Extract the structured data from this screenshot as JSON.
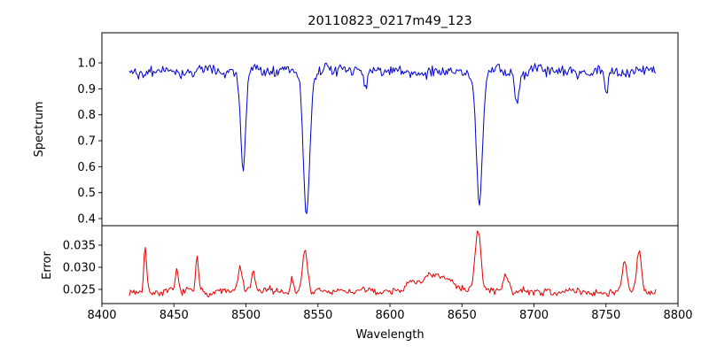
{
  "figure": {
    "title": "20110823_0217m49_123",
    "xlabel": "Wavelength",
    "background_color": "#ffffff"
  },
  "chart_data": [
    {
      "type": "line",
      "title": "20110823_0217m49_123",
      "ylabel": "Spectrum",
      "series_name": "spectrum",
      "color": "#0000cd",
      "xlim": [
        8400,
        8800
      ],
      "ylim": [
        0.3727,
        1.1161
      ],
      "yticks": [
        0.4,
        0.5,
        0.6,
        0.7,
        0.8,
        0.9,
        1.0
      ],
      "ytick_decimals": 1,
      "grid": false,
      "x_start": 8419,
      "x_end": 8785,
      "x_step": 0.8,
      "continuum": 0.968,
      "noise_amplitude": 0.016,
      "noise_seed": 42,
      "absorption_lines": [
        {
          "center": 8498.0,
          "depth": 0.39,
          "sigma": 1.8
        },
        {
          "center": 8542.1,
          "depth": 0.55,
          "sigma": 2.2
        },
        {
          "center": 8662.1,
          "depth": 0.52,
          "sigma": 2.2
        },
        {
          "center": 8688.0,
          "depth": 0.13,
          "sigma": 1.4
        },
        {
          "center": 8583.0,
          "depth": 0.07,
          "sigma": 1.2
        },
        {
          "center": 8750.5,
          "depth": 0.09,
          "sigma": 1.1
        }
      ]
    },
    {
      "type": "line",
      "ylabel": "Error",
      "xlabel": "Wavelength",
      "series_name": "error",
      "color": "#e60000",
      "xlim": [
        8400,
        8800
      ],
      "ylim": [
        0.0218,
        0.0394
      ],
      "yticks": [
        0.025,
        0.03,
        0.035
      ],
      "ytick_decimals": 3,
      "xticks": [
        8400,
        8450,
        8500,
        8550,
        8600,
        8650,
        8700,
        8750,
        8800
      ],
      "grid": false,
      "x_start": 8419,
      "x_end": 8785,
      "x_step": 0.8,
      "baseline": 0.0245,
      "noise_amplitude": 0.0006,
      "noise_seed": 7,
      "peaks": [
        {
          "center": 8430,
          "height": 0.0105,
          "sigma": 1.0
        },
        {
          "center": 8452,
          "height": 0.004,
          "sigma": 1.0
        },
        {
          "center": 8466,
          "height": 0.0075,
          "sigma": 1.0
        },
        {
          "center": 8496,
          "height": 0.005,
          "sigma": 1.5
        },
        {
          "center": 8505,
          "height": 0.0045,
          "sigma": 1.2
        },
        {
          "center": 8532,
          "height": 0.003,
          "sigma": 1.0
        },
        {
          "center": 8541,
          "height": 0.009,
          "sigma": 1.8
        },
        {
          "center": 8630,
          "height": 0.0032,
          "sigma": 14.0
        },
        {
          "center": 8661,
          "height": 0.0135,
          "sigma": 2.0
        },
        {
          "center": 8680,
          "height": 0.0035,
          "sigma": 2.0
        },
        {
          "center": 8763,
          "height": 0.0065,
          "sigma": 1.5
        },
        {
          "center": 8773,
          "height": 0.009,
          "sigma": 1.5
        }
      ]
    }
  ]
}
